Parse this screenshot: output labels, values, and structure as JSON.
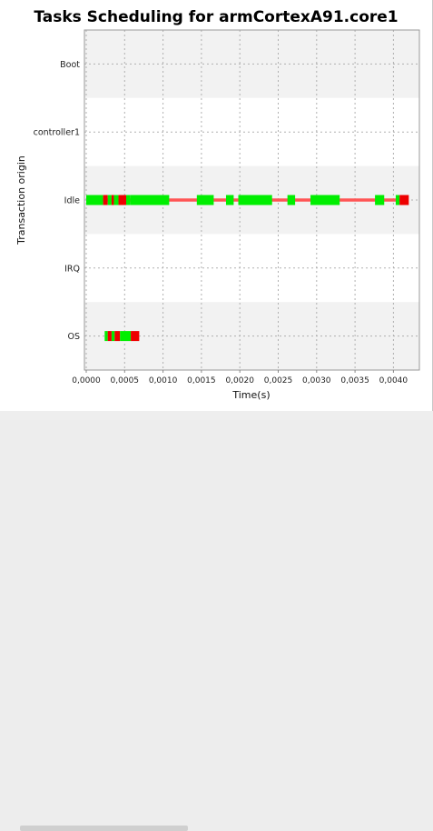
{
  "chart_data": {
    "type": "gantt",
    "title": "Tasks Scheduling for armCortexA91.core1",
    "xlabel": "Time(s)",
    "ylabel": "Transaction origin",
    "xlim": [
      0.0,
      0.00435
    ],
    "x_ticks": [
      "0,0000",
      "0,0005",
      "0,0010",
      "0,0015",
      "0,0020",
      "0,0025",
      "0,0030",
      "0,0035",
      "0,0040"
    ],
    "x_tick_values": [
      0.0,
      0.0005,
      0.001,
      0.0015,
      0.002,
      0.0025,
      0.003,
      0.0035,
      0.004
    ],
    "categories": [
      "Boot",
      "controller1",
      "Idle",
      "IRQ",
      "OS"
    ],
    "grid": true,
    "colors": {
      "running": "#00ee00",
      "transition": "#ee0000",
      "timeline": "#ff5555",
      "band_shaded": "#f2f2f2",
      "band_plain": "#ffffff",
      "grid": "#b0b0b0"
    },
    "idle_timeline": [
      0.0,
      0.00415
    ],
    "segments": {
      "Idle": [
        {
          "start": 0.0,
          "end": 0.00022,
          "state": "running"
        },
        {
          "start": 0.00022,
          "end": 0.00028,
          "state": "transition"
        },
        {
          "start": 0.00028,
          "end": 0.00033,
          "state": "running"
        },
        {
          "start": 0.00033,
          "end": 0.00036,
          "state": "transition"
        },
        {
          "start": 0.00036,
          "end": 0.00042,
          "state": "running"
        },
        {
          "start": 0.00042,
          "end": 0.00052,
          "state": "transition"
        },
        {
          "start": 0.00052,
          "end": 0.00057,
          "state": "running"
        },
        {
          "start": 0.00057,
          "end": 0.00108,
          "state": "running"
        },
        {
          "start": 0.00144,
          "end": 0.00166,
          "state": "running"
        },
        {
          "start": 0.00182,
          "end": 0.00192,
          "state": "running"
        },
        {
          "start": 0.00198,
          "end": 0.00242,
          "state": "running"
        },
        {
          "start": 0.00262,
          "end": 0.00272,
          "state": "running"
        },
        {
          "start": 0.00292,
          "end": 0.0033,
          "state": "running"
        },
        {
          "start": 0.00376,
          "end": 0.00388,
          "state": "running"
        },
        {
          "start": 0.00403,
          "end": 0.00408,
          "state": "running"
        },
        {
          "start": 0.00408,
          "end": 0.0042,
          "state": "transition"
        }
      ],
      "OS": [
        {
          "start": 0.00024,
          "end": 0.00028,
          "state": "running"
        },
        {
          "start": 0.00028,
          "end": 0.00033,
          "state": "transition"
        },
        {
          "start": 0.00033,
          "end": 0.00037,
          "state": "running"
        },
        {
          "start": 0.00037,
          "end": 0.00044,
          "state": "transition"
        },
        {
          "start": 0.00044,
          "end": 0.00058,
          "state": "running"
        },
        {
          "start": 0.00058,
          "end": 0.00069,
          "state": "transition"
        }
      ]
    }
  }
}
